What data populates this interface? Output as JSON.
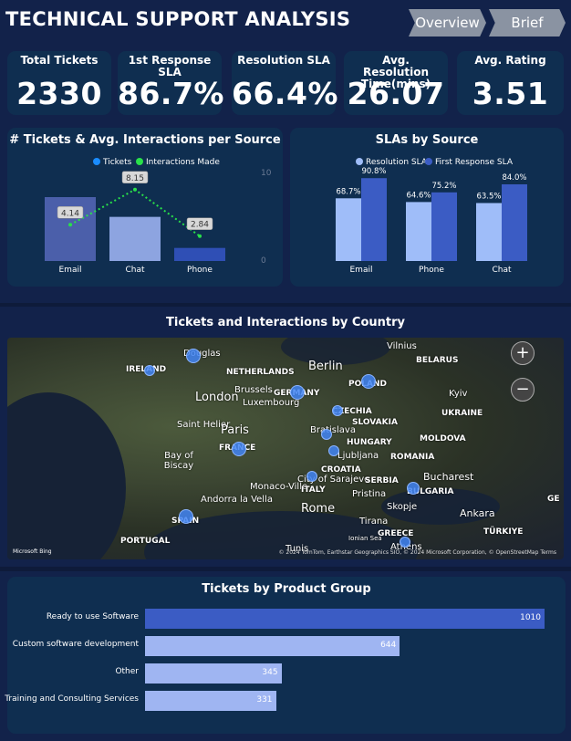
{
  "header": {
    "title": "TECHNICAL SUPPORT ANALYSIS",
    "nav": [
      "Overview",
      "Brief"
    ]
  },
  "kpis": [
    {
      "label": "Total Tickets",
      "value": "2330"
    },
    {
      "label": "1st Response SLA",
      "value": "86.7%"
    },
    {
      "label": "Resolution SLA",
      "value": "66.4%"
    },
    {
      "label": "Avg. Resolution Time(mins)",
      "value": "26.07"
    },
    {
      "label": "Avg. Rating",
      "value": "3.51"
    }
  ],
  "tickets_chart": {
    "title": "# Tickets & Avg. Interactions per Source",
    "legend_tickets": "Tickets",
    "legend_interactions": "Interactions Made",
    "axis_right_top": "10",
    "axis_right_bottom": "0"
  },
  "sla_chart": {
    "title": "SLAs by Source",
    "legend_resolution": "Resolution SLA",
    "legend_first": "First Response SLA"
  },
  "chart_data": [
    {
      "type": "bar",
      "title": "# Tickets & Avg. Interactions per Source",
      "categories": [
        "Email",
        "Chat",
        "Phone"
      ],
      "series": [
        {
          "name": "Tickets",
          "values": [
            1100,
            760,
            225
          ]
        },
        {
          "name": "Interactions Made",
          "values": [
            4.14,
            8.15,
            2.84
          ],
          "labels": [
            "4.14",
            "8.15",
            "2.84"
          ]
        }
      ],
      "y2lim": [
        0,
        10
      ]
    },
    {
      "type": "bar",
      "title": "SLAs by Source",
      "categories": [
        "Email",
        "Phone",
        "Chat"
      ],
      "series": [
        {
          "name": "Resolution SLA",
          "values": [
            68.7,
            64.6,
            63.5
          ],
          "labels": [
            "68.7%",
            "64.6%",
            "63.5%"
          ]
        },
        {
          "name": "First Response SLA",
          "values": [
            90.8,
            75.2,
            84.0
          ],
          "labels": [
            "90.8%",
            "75.2%",
            "84.0%"
          ]
        }
      ],
      "ylim": [
        0,
        100
      ]
    },
    {
      "type": "bar",
      "title": "Tickets by Product Group",
      "categories": [
        "Ready to use Software",
        "Custom software development",
        "Other",
        "Training and Consulting Services"
      ],
      "values": [
        1010,
        644,
        345,
        331
      ],
      "labels": [
        "1010",
        "644",
        "345",
        "331"
      ]
    }
  ],
  "map": {
    "title": "Tickets and Interactions by Country",
    "cities": [
      {
        "name": "Vilnius"
      },
      {
        "name": "Douglas"
      },
      {
        "name": "IRELAND"
      },
      {
        "name": "NETHERLANDS"
      },
      {
        "name": "Berlin"
      },
      {
        "name": "BELARUS"
      },
      {
        "name": "POLAND"
      },
      {
        "name": "Brussels"
      },
      {
        "name": "London"
      },
      {
        "name": "GERMANY"
      },
      {
        "name": "Luxembourg"
      },
      {
        "name": "Kyiv"
      },
      {
        "name": "CZECHIA"
      },
      {
        "name": "UKRAINE"
      },
      {
        "name": "Saint Helier"
      },
      {
        "name": "Paris"
      },
      {
        "name": "SLOVAKIA"
      },
      {
        "name": "Bratislava"
      },
      {
        "name": "HUNGARY"
      },
      {
        "name": "FRANCE"
      },
      {
        "name": "MOLDOVA"
      },
      {
        "name": "Bay of Biscay"
      },
      {
        "name": "Ljubljana"
      },
      {
        "name": "CROATIA"
      },
      {
        "name": "ROMANIA"
      },
      {
        "name": "Monaco-Ville"
      },
      {
        "name": "City of Sarajevo"
      },
      {
        "name": "SERBIA"
      },
      {
        "name": "Bucharest"
      },
      {
        "name": "ITALY"
      },
      {
        "name": "Pristina"
      },
      {
        "name": "Andorra la Vella"
      },
      {
        "name": "Rome"
      },
      {
        "name": "BULGARIA"
      },
      {
        "name": "Skopje"
      },
      {
        "name": "Tirana"
      },
      {
        "name": "SPAIN"
      },
      {
        "name": "Ankara"
      },
      {
        "name": "GREECE"
      },
      {
        "name": "TÜRKIYE"
      },
      {
        "name": "PORTUGAL"
      },
      {
        "name": "Tunis"
      },
      {
        "name": "Ionian Sea"
      },
      {
        "name": "Athens"
      },
      {
        "name": "GE"
      }
    ],
    "zoom_in": "+",
    "zoom_out": "−",
    "bing": "Microsoft Bing",
    "credit": "© 2024 TomTom, Earthstar Geographics SIO, © 2024 Microsoft Corporation, © OpenStreetMap  Terms"
  },
  "product_chart": {
    "title": "Tickets by Product Group"
  }
}
